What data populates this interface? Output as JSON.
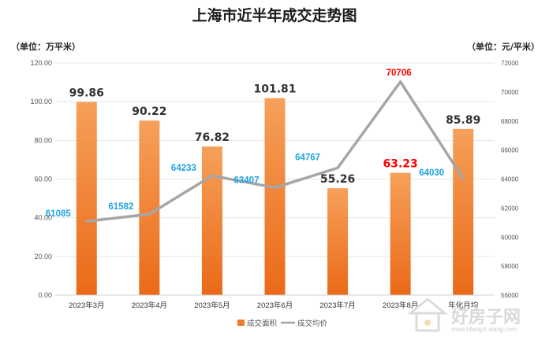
{
  "chart_data": {
    "type": "bar+line",
    "title": "上海市近半年成交走势图",
    "left_unit": "（单位：万平米）",
    "right_unit": "（单位：元/平米）",
    "categories": [
      "2023年3月",
      "2023年4月",
      "2023年5月",
      "2023年6月",
      "2023年7月",
      "2023年8月",
      "年化月均"
    ],
    "ylim": [
      0,
      120
    ],
    "yticks": [
      "0.00",
      "20.00",
      "40.00",
      "60.00",
      "80.00",
      "100.00",
      "120.00"
    ],
    "y2lim": [
      56000,
      72000
    ],
    "y2ticks": [
      "56000",
      "58000",
      "60000",
      "62000",
      "64000",
      "66000",
      "68000",
      "70000",
      "72000"
    ],
    "grid": true,
    "legend_position": "bottom",
    "series": [
      {
        "name": "成交面积",
        "type": "bar",
        "axis": "left",
        "color": "#f08a3c",
        "values": [
          99.86,
          90.22,
          76.82,
          101.81,
          55.26,
          63.23,
          85.89
        ],
        "labels": [
          "99.86",
          "90.22",
          "76.82",
          "101.81",
          "55.26",
          "63.23",
          "85.89"
        ],
        "label_colors": [
          "#333333",
          "#333333",
          "#333333",
          "#333333",
          "#333333",
          "#ff0000",
          "#333333"
        ]
      },
      {
        "name": "成交均价",
        "type": "line",
        "axis": "right",
        "color": "#a6a6a6",
        "values": [
          61085,
          61582,
          64233,
          63407,
          64767,
          70706,
          64030
        ],
        "labels": [
          "61085",
          "61582",
          "64233",
          "63407",
          "64767",
          "70706",
          "64030"
        ],
        "label_colors": [
          "#1fa3e0",
          "#1fa3e0",
          "#1fa3e0",
          "#1fa3e0",
          "#1fa3e0",
          "#ff0000",
          "#1fa3e0"
        ]
      }
    ]
  },
  "watermark": {
    "text": "好房子网",
    "url": "www.hfangzi wang.com"
  }
}
